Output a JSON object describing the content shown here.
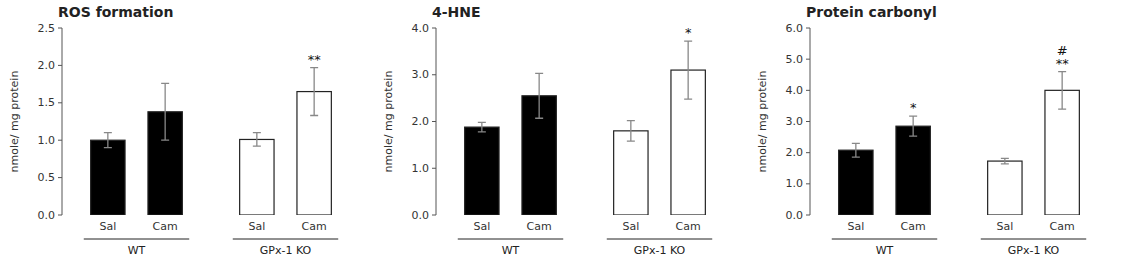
{
  "chart_data": [
    {
      "type": "bar",
      "title": "ROS formation",
      "y_label": "nmole/ mg protein",
      "categories": [
        "Sal",
        "Cam",
        "Sal",
        "Cam"
      ],
      "values": [
        1.0,
        1.38,
        1.01,
        1.65
      ],
      "errors": [
        0.1,
        0.38,
        0.09,
        0.32
      ],
      "colors": [
        "black",
        "black",
        "white",
        "white"
      ],
      "groups": [
        "WT",
        "GPx-1 KO"
      ],
      "annotations": [
        {
          "text": "**",
          "index": 3
        }
      ],
      "ylim": [
        0,
        2.5
      ],
      "yticks": [
        {
          "value": 0.0,
          "label": "0.0"
        },
        {
          "value": 0.5,
          "label": "0.5"
        },
        {
          "value": 1.0,
          "label": "1.0"
        },
        {
          "value": 1.5,
          "label": "1.5"
        },
        {
          "value": 2.0,
          "label": "2.0"
        },
        {
          "value": 2.5,
          "label": "2.5"
        }
      ],
      "grid": false
    },
    {
      "type": "bar",
      "title": "4-HNE",
      "y_label": "nmole/ mg protein",
      "categories": [
        "Sal",
        "Cam",
        "Sal",
        "Cam"
      ],
      "values": [
        1.88,
        2.55,
        1.8,
        3.1
      ],
      "errors": [
        0.1,
        0.48,
        0.22,
        0.62
      ],
      "colors": [
        "black",
        "black",
        "white",
        "white"
      ],
      "groups": [
        "WT",
        "GPx-1 KO"
      ],
      "annotations": [
        {
          "text": "*",
          "index": 3
        }
      ],
      "ylim": [
        0,
        4.0
      ],
      "yticks": [
        {
          "value": 0.0,
          "label": "0.0"
        },
        {
          "value": 1.0,
          "label": "1.0"
        },
        {
          "value": 2.0,
          "label": "2.0"
        },
        {
          "value": 3.0,
          "label": "3.0"
        },
        {
          "value": 4.0,
          "label": "4.0"
        }
      ],
      "grid": false
    },
    {
      "type": "bar",
      "title": "Protein carbonyl",
      "y_label": "nmole/ mg protein",
      "categories": [
        "Sal",
        "Cam",
        "Sal",
        "Cam"
      ],
      "values": [
        2.08,
        2.85,
        1.73,
        4.0
      ],
      "errors": [
        0.22,
        0.32,
        0.09,
        0.6
      ],
      "colors": [
        "black",
        "black",
        "white",
        "white"
      ],
      "groups": [
        "WT",
        "GPx-1 KO"
      ],
      "annotations": [
        {
          "text": "*",
          "index": 1
        },
        {
          "text": "**",
          "index": 3
        },
        {
          "text": "#",
          "index": 3
        }
      ],
      "ylim": [
        0,
        6.0
      ],
      "yticks": [
        {
          "value": 0.0,
          "label": "0.0"
        },
        {
          "value": 1.0,
          "label": "1.0"
        },
        {
          "value": 2.0,
          "label": "2.0"
        },
        {
          "value": 3.0,
          "label": "3.0"
        },
        {
          "value": 4.0,
          "label": "4.0"
        },
        {
          "value": 5.0,
          "label": "5.0"
        },
        {
          "value": 6.0,
          "label": "6.0"
        }
      ],
      "grid": false
    }
  ]
}
